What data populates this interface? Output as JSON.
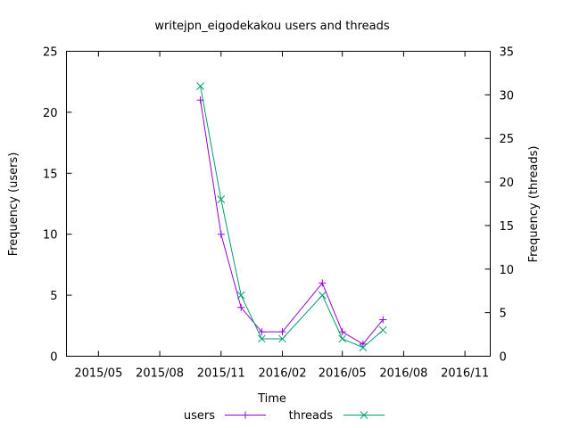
{
  "chart_data": {
    "type": "line",
    "title": "writejpn_eigodekakou users and threads",
    "xlabel": "Time",
    "ylabel_left": "Frequency (users)",
    "ylabel_right": "Frequency (threads)",
    "x_tick_labels": [
      "2015/05",
      "2015/08",
      "2015/11",
      "2016/02",
      "2016/05",
      "2016/08",
      "2016/11"
    ],
    "x_ticks": [
      "2015-05-01",
      "2015-08-01",
      "2015-11-01",
      "2016-02-01",
      "2016-05-01",
      "2016-08-01",
      "2016-11-01"
    ],
    "xlim": [
      "2015-03-14",
      "2016-12-09"
    ],
    "ylim_left": [
      0,
      25
    ],
    "yticks_left": [
      0,
      5,
      10,
      15,
      20,
      25
    ],
    "ylim_right": [
      0,
      35
    ],
    "yticks_right": [
      0,
      5,
      10,
      15,
      20,
      25,
      30,
      35
    ],
    "grid": false,
    "legend_position": "bottom",
    "series": [
      {
        "name": "users",
        "axis": "left",
        "color": "#9400d3",
        "marker": "plus",
        "x": [
          "2015-10-01",
          "2015-11-01",
          "2015-12-01",
          "2016-01-01",
          "2016-02-01",
          "2016-04-01",
          "2016-05-01",
          "2016-06-01",
          "2016-07-01"
        ],
        "y": [
          21,
          10,
          4,
          2,
          2,
          6,
          2,
          1,
          3
        ]
      },
      {
        "name": "threads",
        "axis": "right",
        "color": "#009e73",
        "marker": "cross",
        "x": [
          "2015-10-01",
          "2015-11-01",
          "2015-12-01",
          "2016-01-01",
          "2016-02-01",
          "2016-04-01",
          "2016-05-01",
          "2016-06-01",
          "2016-07-01"
        ],
        "y": [
          31,
          18,
          7,
          2,
          2,
          7,
          2,
          1,
          3
        ]
      }
    ]
  }
}
